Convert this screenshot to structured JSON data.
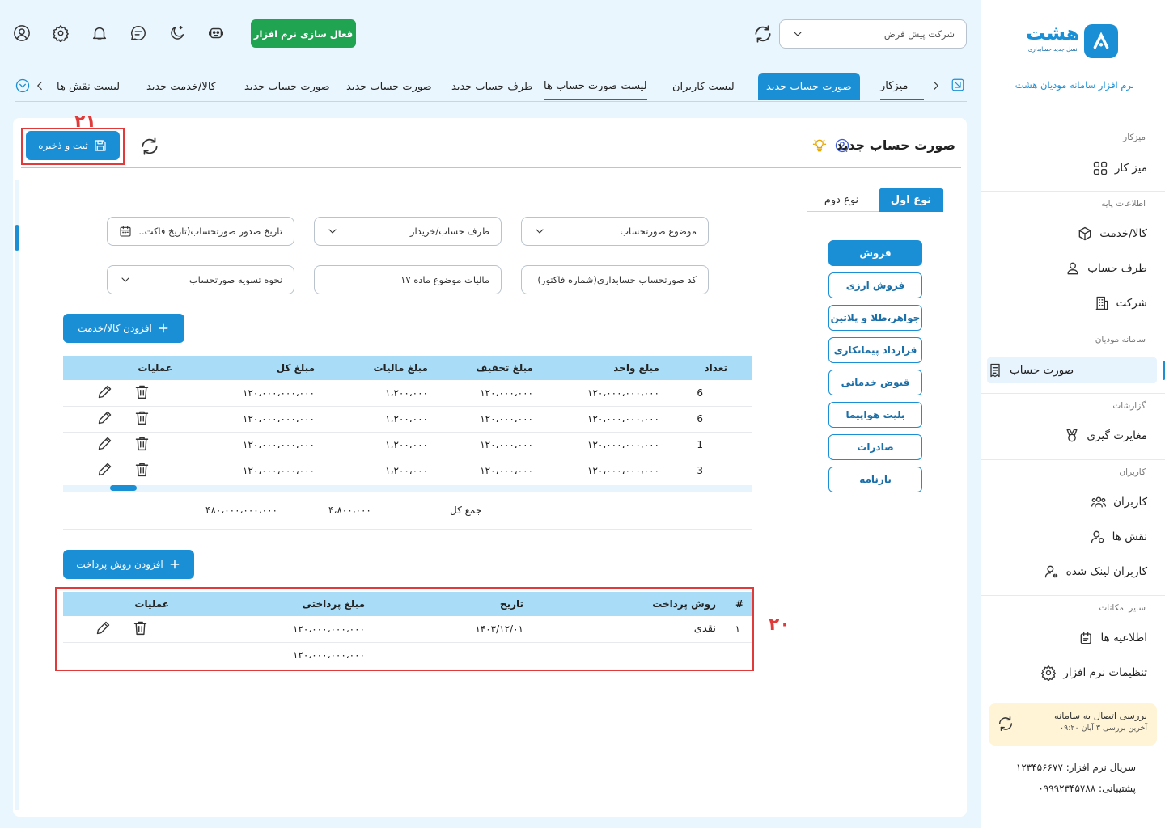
{
  "sidebar": {
    "logo_word": "هشت",
    "logo_sub": "نسل جدید حسابداری",
    "app_name": "نرم افزار سامانه مودیان هشت",
    "sections": {
      "desk": "میزکار",
      "base": "اطلاعات پایه",
      "moadian": "سامانه مودیان",
      "reports": "گزارشات",
      "users": "کاربران",
      "other": "سایر امکانات"
    },
    "items": {
      "dashboard": "میز کار",
      "goods": "کالا/خدمت",
      "party": "طرف حساب",
      "company": "شرکت",
      "invoice": "صورت حساب",
      "discrepancy": "مغایرت گیری",
      "users": "کاربران",
      "roles": "نقش ها",
      "linked_users": "کاربران لینک شده",
      "announcements": "اطلاعیه ها",
      "settings": "تنظیمات نرم افزار"
    },
    "connection": {
      "title": "بررسی اتصال به سامانه",
      "last_check": "آخرین بررسی ۳ آبان ۰۹:۲۰"
    },
    "serial": "سریال نرم افزار: ۱۲۳۴۵۶۶۷۷",
    "support": "پشتیبانی: ۰۹۹۹۲۳۴۵۷۸۸"
  },
  "header": {
    "company_select": "شرکت پیش فرض",
    "activate_label": "فعال سازی نرم افزار"
  },
  "tabs": [
    "میزکار",
    "صورت حساب جدید",
    "لیست کاربران",
    "لیست صورت حساب ها",
    "طرف حساب جدید",
    "صورت حساب جدید",
    "صورت حساب جدید",
    "کالا/خدمت جدید",
    "لیست نقش ها"
  ],
  "page": {
    "title": "صورت حساب جدید",
    "save_label": "ثبت و ذخیره",
    "annotation_21": "۲۱",
    "annotation_20": "۲۰",
    "type_tabs": [
      "نوع اول",
      "نوع دوم"
    ],
    "pattern_pills": [
      "فروش",
      "فروش ارزی",
      "جواهر،طلا و پلاتین",
      "قرارداد پیمانکاری",
      "قبوض خدماتی",
      "بلیت هواپیما",
      "صادرات",
      "بارنامه"
    ],
    "fields": {
      "subject": "موضوع صورتحساب",
      "buyer": "طرف حساب/خریدار",
      "issue_date": "تاریخ صدور صورتحساب(تاریخ فاکت..",
      "code": "کد صورتحساب حسابداری(شماره فاکتور)",
      "tax17": "مالیات موضوع ماده ۱۷",
      "settlement": "نحوه تسویه صورتحساب"
    },
    "add_item_label": "افزودن کالا/خدمت",
    "add_payment_label": "افزودن روش پرداخت"
  },
  "items_table": {
    "headers": [
      "تعداد",
      "مبلغ واحد",
      "مبلغ تخفیف",
      "مبلغ مالیات",
      "مبلغ کل",
      "عملیات"
    ],
    "rows": [
      [
        "6",
        "۱۲۰،۰۰۰،۰۰۰،۰۰۰",
        "۱۲۰،۰۰۰،۰۰۰",
        "۱،۲۰۰،۰۰۰",
        "۱۲۰،۰۰۰،۰۰۰،۰۰۰"
      ],
      [
        "6",
        "۱۲۰،۰۰۰،۰۰۰،۰۰۰",
        "۱۲۰،۰۰۰،۰۰۰",
        "۱،۲۰۰،۰۰۰",
        "۱۲۰،۰۰۰،۰۰۰،۰۰۰"
      ],
      [
        "1",
        "۱۲۰،۰۰۰،۰۰۰،۰۰۰",
        "۱۲۰،۰۰۰،۰۰۰",
        "۱،۲۰۰،۰۰۰",
        "۱۲۰،۰۰۰،۰۰۰،۰۰۰"
      ],
      [
        "3",
        "۱۲۰،۰۰۰،۰۰۰،۰۰۰",
        "۱۲۰،۰۰۰،۰۰۰",
        "۱،۲۰۰،۰۰۰",
        "۱۲۰،۰۰۰،۰۰۰،۰۰۰"
      ]
    ],
    "sum_label": "جمع کل",
    "sum_tax": "۴،۸۰۰،۰۰۰",
    "sum_total": "۴۸۰،۰۰۰،۰۰۰،۰۰۰"
  },
  "payments_table": {
    "headers": [
      "#",
      "روش پرداخت",
      "تاریخ",
      "مبلغ پرداختی",
      "عملیات"
    ],
    "rows": [
      [
        "۱",
        "نقدی",
        "۱۴۰۳/۱۲/۰۱",
        "۱۲۰،۰۰۰،۰۰۰،۰۰۰"
      ]
    ],
    "sum_amount": "۱۲۰،۰۰۰،۰۰۰،۰۰۰"
  },
  "icons": {
    "header": [
      "user-icon",
      "gear-icon",
      "bell-icon",
      "chat-icon",
      "moon-icon",
      "robot-icon"
    ]
  },
  "colors": {
    "primary": "#1a8fd6",
    "activate": "#21a451",
    "annotation": "#e03a3a",
    "table_header": "#a9ddf7"
  }
}
